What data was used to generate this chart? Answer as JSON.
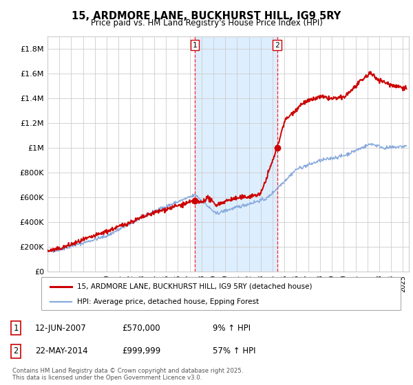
{
  "title": "15, ARDMORE LANE, BUCKHURST HILL, IG9 5RY",
  "subtitle": "Price paid vs. HM Land Registry's House Price Index (HPI)",
  "ytick_values": [
    0,
    200000,
    400000,
    600000,
    800000,
    1000000,
    1200000,
    1400000,
    1600000,
    1800000
  ],
  "ylim": [
    0,
    1900000
  ],
  "xmin": 1995.0,
  "xmax": 2025.5,
  "sale1_x": 2007.45,
  "sale1_y": 570000,
  "sale2_x": 2014.38,
  "sale2_y": 999999,
  "sale1_date": "12-JUN-2007",
  "sale1_price": "£570,000",
  "sale1_hpi": "9% ↑ HPI",
  "sale2_date": "22-MAY-2014",
  "sale2_price": "£999,999",
  "sale2_hpi": "57% ↑ HPI",
  "legend_line1": "15, ARDMORE LANE, BUCKHURST HILL, IG9 5RY (detached house)",
  "legend_line2": "HPI: Average price, detached house, Epping Forest",
  "footer": "Contains HM Land Registry data © Crown copyright and database right 2025.\nThis data is licensed under the Open Government Licence v3.0.",
  "line_color_red": "#cc0000",
  "line_color_blue": "#88aadd",
  "shade_color": "#ddeeff",
  "grid_color": "#cccccc",
  "bg_color": "#ffffff",
  "x_ticks": [
    1995,
    1996,
    1997,
    1998,
    1999,
    2000,
    2001,
    2002,
    2003,
    2004,
    2005,
    2006,
    2007,
    2008,
    2009,
    2010,
    2011,
    2012,
    2013,
    2014,
    2015,
    2016,
    2017,
    2018,
    2019,
    2020,
    2021,
    2022,
    2023,
    2024,
    2025
  ]
}
